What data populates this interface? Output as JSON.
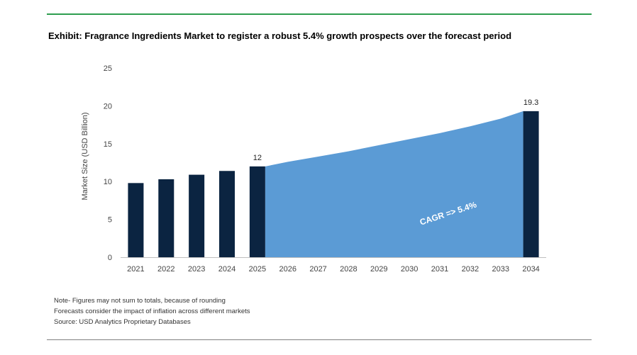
{
  "title": "Exhibit: Fragrance Ingredients Market to register a robust 5.4% growth prospects over the forecast period",
  "notes": [
    "Note- Figures may not sum to totals, because of rounding",
    "Forecasts consider the impact of inflation across different markets",
    "Source: USD Analytics Proprietary Databases"
  ],
  "chart_data": {
    "type": "bar",
    "title": "Exhibit: Fragrance Ingredients Market to register a robust 5.4% growth prospects over the forecast period",
    "ylabel": "Market Size (USD Billion)",
    "xlabel": "",
    "ylim": [
      0,
      25
    ],
    "yticks": [
      0,
      5,
      10,
      15,
      20,
      25
    ],
    "categories": [
      "2021",
      "2022",
      "2023",
      "2024",
      "2025",
      "2026",
      "2027",
      "2028",
      "2029",
      "2030",
      "2031",
      "2032",
      "2033",
      "2034"
    ],
    "bars": [
      {
        "x": "2021",
        "value": 9.8
      },
      {
        "x": "2022",
        "value": 10.3
      },
      {
        "x": "2023",
        "value": 10.9
      },
      {
        "x": "2024",
        "value": 11.4
      },
      {
        "x": "2025",
        "value": 12
      },
      {
        "x": "2034",
        "value": 19.3
      }
    ],
    "forecast_area": {
      "x": [
        "2025",
        "2026",
        "2027",
        "2028",
        "2029",
        "2030",
        "2031",
        "2032",
        "2033",
        "2034"
      ],
      "values": [
        12,
        12.6,
        13.3,
        14.0,
        14.8,
        15.6,
        16.4,
        17.3,
        18.3,
        19.3
      ]
    },
    "data_labels": [
      {
        "x": "2025",
        "text": "12"
      },
      {
        "x": "2034",
        "text": "19.3"
      }
    ],
    "annotation": {
      "label": "CAGR",
      "arrow": "=>",
      "value": "5.4%"
    },
    "colors": {
      "bar": "#0b2441",
      "area": "#5b9bd5",
      "rule": "#2e9e4f"
    },
    "grid": false,
    "legend": "none"
  }
}
